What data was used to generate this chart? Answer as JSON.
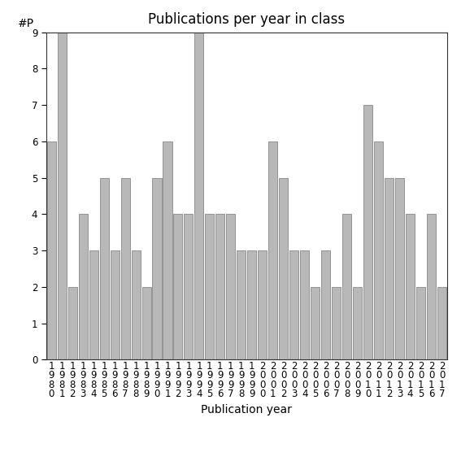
{
  "title": "Publications per year in class",
  "xlabel": "Publication year",
  "ylabel": "#P",
  "bar_color": "#b8b8b8",
  "bar_edgecolor": "#888888",
  "categories": [
    "1\n9\n8\n0",
    "1\n9\n8\n1",
    "1\n9\n8\n2",
    "1\n9\n8\n3",
    "1\n9\n8\n4",
    "1\n9\n8\n5",
    "1\n9\n8\n6",
    "1\n9\n8\n7",
    "1\n9\n8\n8",
    "1\n9\n8\n9",
    "1\n9\n9\n0",
    "1\n9\n9\n1",
    "1\n9\n9\n2",
    "1\n9\n9\n3",
    "1\n9\n9\n4",
    "1\n9\n9\n5",
    "1\n9\n9\n6",
    "1\n9\n9\n7",
    "1\n9\n9\n8",
    "1\n9\n9\n9",
    "2\n0\n0\n0",
    "2\n0\n0\n1",
    "2\n0\n0\n2",
    "2\n0\n0\n3",
    "2\n0\n0\n4",
    "2\n0\n0\n5",
    "2\n0\n0\n6",
    "2\n0\n0\n7",
    "2\n0\n0\n8",
    "2\n0\n0\n9",
    "2\n0\n1\n0",
    "2\n0\n1\n1",
    "2\n0\n1\n2",
    "2\n0\n1\n3",
    "2\n0\n1\n4",
    "2\n0\n1\n5",
    "2\n0\n1\n6",
    "2\n0\n1\n7"
  ],
  "values": [
    6,
    9,
    2,
    4,
    3,
    5,
    3,
    5,
    3,
    2,
    5,
    6,
    4,
    4,
    9,
    4,
    4,
    4,
    3,
    3,
    3,
    6,
    5,
    3,
    3,
    2,
    3,
    2,
    4,
    2,
    7,
    6,
    5,
    5,
    4,
    2,
    4,
    2
  ],
  "ylim": [
    0,
    9
  ],
  "yticks": [
    0,
    1,
    2,
    3,
    4,
    5,
    6,
    7,
    8,
    9
  ],
  "background_color": "#ffffff",
  "title_fontsize": 12,
  "label_fontsize": 10,
  "tick_fontsize": 8.5,
  "ylabel_fontsize": 10
}
